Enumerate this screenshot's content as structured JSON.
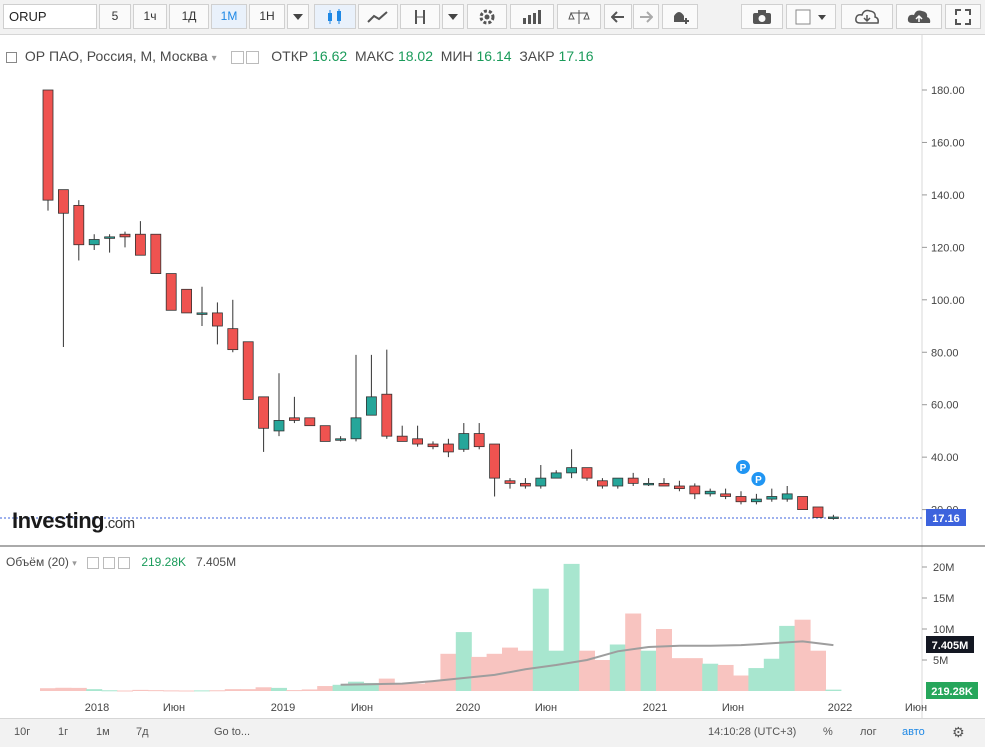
{
  "toolbar": {
    "symbol": "ORUP",
    "intervals": [
      "5",
      "1ч",
      "1Д",
      "1М",
      "1Н"
    ],
    "active_interval": "1М"
  },
  "legend": {
    "title": "ОР ПАО, Россия, М, Москва",
    "open_label": "ОТКР",
    "open_value": "16.62",
    "high_label": "МАКС",
    "high_value": "18.02",
    "low_label": "МИН",
    "low_value": "16.14",
    "close_label": "ЗАКР",
    "close_value": "17.16"
  },
  "volume_legend": {
    "label": "Объём (20)",
    "volume_value": "219.28K",
    "ma_value": "7.405M"
  },
  "logo": {
    "brand": "Investing",
    "suffix": ".com"
  },
  "bottom": {
    "ranges": [
      "10г",
      "1г",
      "1м",
      "7д"
    ],
    "goto": "Go to...",
    "time": "14:10:28 (UTC+3)",
    "percent": "%",
    "log": "лог",
    "auto": "авто"
  },
  "colors": {
    "up": "#26a69a",
    "down": "#ef5350",
    "up_vol": "#a8e6cf",
    "down_vol": "#f8c4c0",
    "price_tag": "#3d63dd",
    "marker": "#2196f3"
  },
  "chart_data": {
    "type": "candlestick",
    "title": "ОР ПАО, Россия, М, Москва",
    "x_tick_labels": [
      "2018",
      "Июн",
      "2019",
      "Июн",
      "2020",
      "Июн",
      "2021",
      "Июн",
      "2022",
      "Июн"
    ],
    "y_tick_labels": [
      "20.00",
      "40.00",
      "60.00",
      "80.00",
      "100.00",
      "120.00",
      "140.00",
      "160.00",
      "180.00"
    ],
    "ylim": [
      12,
      190
    ],
    "volume_tick_labels": [
      "5M",
      "10M",
      "15M",
      "20M"
    ],
    "volume_ylim": [
      0,
      22000000
    ],
    "last_price_label": "17.16",
    "last_volume_label": "219.28K",
    "volume_ma_label": "7.405M",
    "markers": [
      {
        "label": "P",
        "index": 45
      },
      {
        "label": "P",
        "index": 46
      }
    ],
    "candles": [
      {
        "o": 180.0,
        "h": 180.0,
        "l": 134.0,
        "c": 138.0,
        "v": 450000
      },
      {
        "o": 142.0,
        "h": 142.0,
        "l": 82.0,
        "c": 133.0,
        "v": 520000
      },
      {
        "o": 136.0,
        "h": 138.0,
        "l": 115.0,
        "c": 121.0,
        "v": 500000
      },
      {
        "o": 121.0,
        "h": 125.0,
        "l": 119.0,
        "c": 123.0,
        "v": 300000
      },
      {
        "o": 124.0,
        "h": 125.0,
        "l": 118.0,
        "c": 124.0,
        "v": 120000
      },
      {
        "o": 125.0,
        "h": 126.0,
        "l": 120.0,
        "c": 124.0,
        "v": 80000
      },
      {
        "o": 125.0,
        "h": 130.0,
        "l": 117.0,
        "c": 117.0,
        "v": 180000
      },
      {
        "o": 125.0,
        "h": 125.0,
        "l": 110.0,
        "c": 110.0,
        "v": 140000
      },
      {
        "o": 110.0,
        "h": 110.0,
        "l": 96.0,
        "c": 96.0,
        "v": 100000
      },
      {
        "o": 104.0,
        "h": 104.0,
        "l": 95.0,
        "c": 95.0,
        "v": 80000
      },
      {
        "o": 95.0,
        "h": 105.0,
        "l": 90.0,
        "c": 95.0,
        "v": 100000
      },
      {
        "o": 95.0,
        "h": 99.0,
        "l": 83.0,
        "c": 90.0,
        "v": 120000
      },
      {
        "o": 89.0,
        "h": 100.0,
        "l": 80.0,
        "c": 81.0,
        "v": 300000
      },
      {
        "o": 84.0,
        "h": 84.0,
        "l": 62.0,
        "c": 62.0,
        "v": 300000
      },
      {
        "o": 63.0,
        "h": 63.0,
        "l": 42.0,
        "c": 51.0,
        "v": 600000
      },
      {
        "o": 50.0,
        "h": 72.0,
        "l": 48.0,
        "c": 54.0,
        "v": 500000
      },
      {
        "o": 55.0,
        "h": 63.0,
        "l": 53.0,
        "c": 54.0,
        "v": 150000
      },
      {
        "o": 55.0,
        "h": 55.0,
        "l": 52.0,
        "c": 52.0,
        "v": 250000
      },
      {
        "o": 52.0,
        "h": 52.0,
        "l": 46.0,
        "c": 46.0,
        "v": 800000
      },
      {
        "o": 47.0,
        "h": 48.0,
        "l": 46.0,
        "c": 47.0,
        "v": 1000000
      },
      {
        "o": 47.0,
        "h": 79.0,
        "l": 46.0,
        "c": 55.0,
        "v": 1500000
      },
      {
        "o": 56.0,
        "h": 79.0,
        "l": 56.0,
        "c": 63.0,
        "v": 1300000
      },
      {
        "o": 64.0,
        "h": 81.0,
        "l": 47.0,
        "c": 48.0,
        "v": 2000000
      },
      {
        "o": 48.0,
        "h": 52.0,
        "l": 46.0,
        "c": 46.0,
        "v": 1300000
      },
      {
        "o": 47.0,
        "h": 52.0,
        "l": 44.0,
        "c": 45.0,
        "v": 1200000
      },
      {
        "o": 45.0,
        "h": 46.0,
        "l": 43.0,
        "c": 44.0,
        "v": 1600000
      },
      {
        "o": 45.0,
        "h": 47.0,
        "l": 40.0,
        "c": 42.0,
        "v": 6000000
      },
      {
        "o": 43.0,
        "h": 53.0,
        "l": 42.0,
        "c": 49.0,
        "v": 9500000
      },
      {
        "o": 49.0,
        "h": 53.0,
        "l": 43.0,
        "c": 44.0,
        "v": 5500000
      },
      {
        "o": 45.0,
        "h": 45.0,
        "l": 25.0,
        "c": 32.0,
        "v": 6000000
      },
      {
        "o": 31.0,
        "h": 32.0,
        "l": 28.0,
        "c": 30.0,
        "v": 7000000
      },
      {
        "o": 30.0,
        "h": 32.0,
        "l": 28.0,
        "c": 29.0,
        "v": 6500000
      },
      {
        "o": 29.0,
        "h": 37.0,
        "l": 28.0,
        "c": 32.0,
        "v": 16500000
      },
      {
        "o": 32.0,
        "h": 35.0,
        "l": 32.0,
        "c": 34.0,
        "v": 6500000
      },
      {
        "o": 34.0,
        "h": 43.0,
        "l": 32.0,
        "c": 36.0,
        "v": 20500000
      },
      {
        "o": 36.0,
        "h": 36.0,
        "l": 31.0,
        "c": 32.0,
        "v": 6500000
      },
      {
        "o": 31.0,
        "h": 32.0,
        "l": 28.0,
        "c": 29.0,
        "v": 5000000
      },
      {
        "o": 29.0,
        "h": 32.0,
        "l": 28.0,
        "c": 32.0,
        "v": 7500000
      },
      {
        "o": 32.0,
        "h": 34.0,
        "l": 29.0,
        "c": 30.0,
        "v": 12500000
      },
      {
        "o": 30.0,
        "h": 32.0,
        "l": 29.0,
        "c": 30.0,
        "v": 6500000
      },
      {
        "o": 30.0,
        "h": 32.0,
        "l": 29.0,
        "c": 29.0,
        "v": 10000000
      },
      {
        "o": 29.0,
        "h": 31.0,
        "l": 27.0,
        "c": 28.0,
        "v": 5300000
      },
      {
        "o": 29.0,
        "h": 30.0,
        "l": 24.0,
        "c": 26.0,
        "v": 5300000
      },
      {
        "o": 26.0,
        "h": 28.0,
        "l": 25.0,
        "c": 27.0,
        "v": 4400000
      },
      {
        "o": 26.0,
        "h": 28.0,
        "l": 24.0,
        "c": 25.0,
        "v": 4200000
      },
      {
        "o": 25.0,
        "h": 27.0,
        "l": 22.0,
        "c": 23.0,
        "v": 2500000
      },
      {
        "o": 23.0,
        "h": 26.0,
        "l": 22.0,
        "c": 24.0,
        "v": 3700000
      },
      {
        "o": 24.0,
        "h": 28.0,
        "l": 23.0,
        "c": 25.0,
        "v": 5200000
      },
      {
        "o": 24.0,
        "h": 29.0,
        "l": 23.0,
        "c": 26.0,
        "v": 10500000
      },
      {
        "o": 25.0,
        "h": 25.0,
        "l": 20.0,
        "c": 20.0,
        "v": 11500000
      },
      {
        "o": 21.0,
        "h": 21.0,
        "l": 17.0,
        "c": 17.0,
        "v": 6500000
      },
      {
        "o": 16.62,
        "h": 18.02,
        "l": 16.14,
        "c": 17.16,
        "v": 219280
      }
    ],
    "volume_ma": [
      {
        "index": 19,
        "value": 1000000
      },
      {
        "index": 21,
        "value": 1100000
      },
      {
        "index": 23,
        "value": 1200000
      },
      {
        "index": 25,
        "value": 1600000
      },
      {
        "index": 27,
        "value": 2100000
      },
      {
        "index": 29,
        "value": 2600000
      },
      {
        "index": 31,
        "value": 3500000
      },
      {
        "index": 33,
        "value": 4200000
      },
      {
        "index": 35,
        "value": 5000000
      },
      {
        "index": 37,
        "value": 6400000
      },
      {
        "index": 39,
        "value": 7100000
      },
      {
        "index": 41,
        "value": 7300000
      },
      {
        "index": 43,
        "value": 7300000
      },
      {
        "index": 45,
        "value": 7400000
      },
      {
        "index": 47,
        "value": 7700000
      },
      {
        "index": 49,
        "value": 8000000
      },
      {
        "index": 51,
        "value": 7405000
      }
    ]
  }
}
